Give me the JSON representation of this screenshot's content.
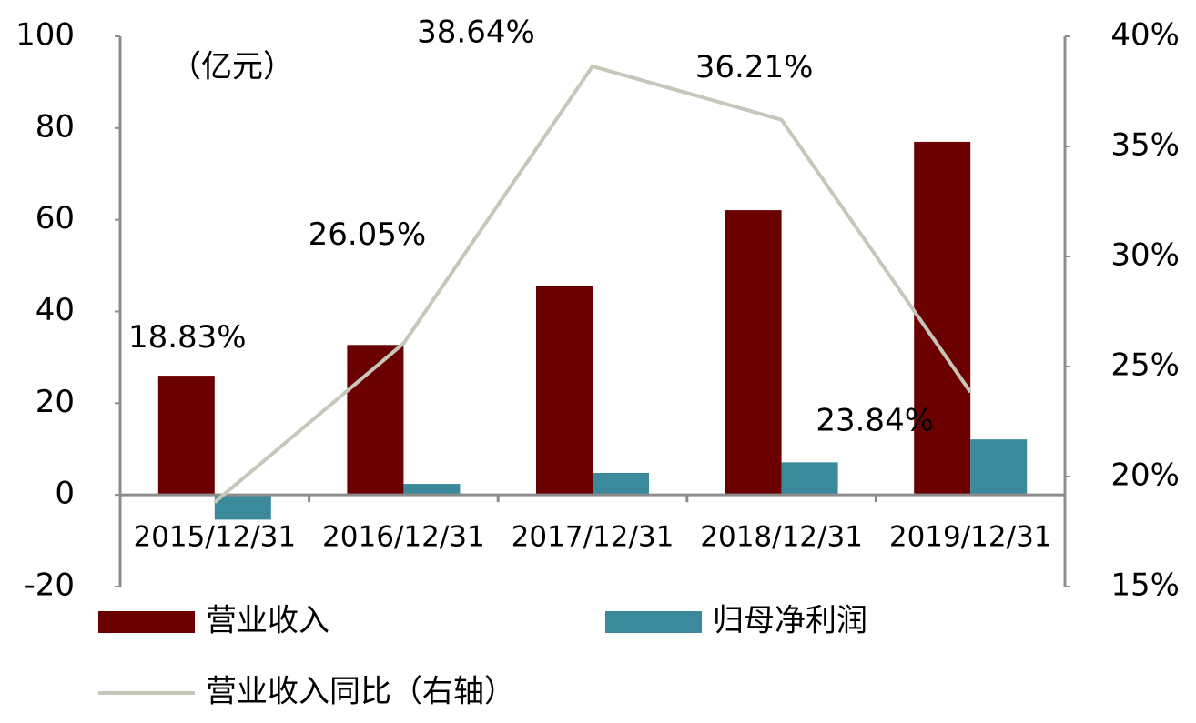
{
  "chart_data": {
    "type": "bar-line",
    "unit_label": "（亿元）",
    "categories": [
      "2015/12/31",
      "2016/12/31",
      "2017/12/31",
      "2018/12/31",
      "2019/12/31"
    ],
    "series": [
      {
        "name": "营业收入",
        "color": "#6b0000",
        "type": "bar",
        "values": [
          26.0,
          32.7,
          45.6,
          62.1,
          77.0
        ]
      },
      {
        "name": "归母净利润",
        "color": "#3b8a9b",
        "type": "bar",
        "values": [
          -5.4,
          2.4,
          4.8,
          7.1,
          12.1
        ]
      },
      {
        "name": "营业收入同比（右轴）",
        "color": "#c6c6ba",
        "type": "line",
        "axis": "y2",
        "values": [
          18.83,
          26.05,
          38.64,
          36.21,
          23.84
        ],
        "value_labels": [
          "18.83%",
          "26.05%",
          "38.64%",
          "36.21%",
          "23.84%"
        ]
      }
    ],
    "ylim": [
      -20,
      100
    ],
    "yticks": [
      -20,
      0,
      20,
      40,
      60,
      80,
      100
    ],
    "y2lim": [
      15,
      40
    ],
    "y2ticks": [
      {
        "value": 15,
        "label": "15%"
      },
      {
        "value": 20,
        "label": "20%"
      },
      {
        "value": 25,
        "label": "25%"
      },
      {
        "value": 30,
        "label": "30%"
      },
      {
        "value": 35,
        "label": "35%"
      },
      {
        "value": 40,
        "label": "40%"
      }
    ]
  }
}
